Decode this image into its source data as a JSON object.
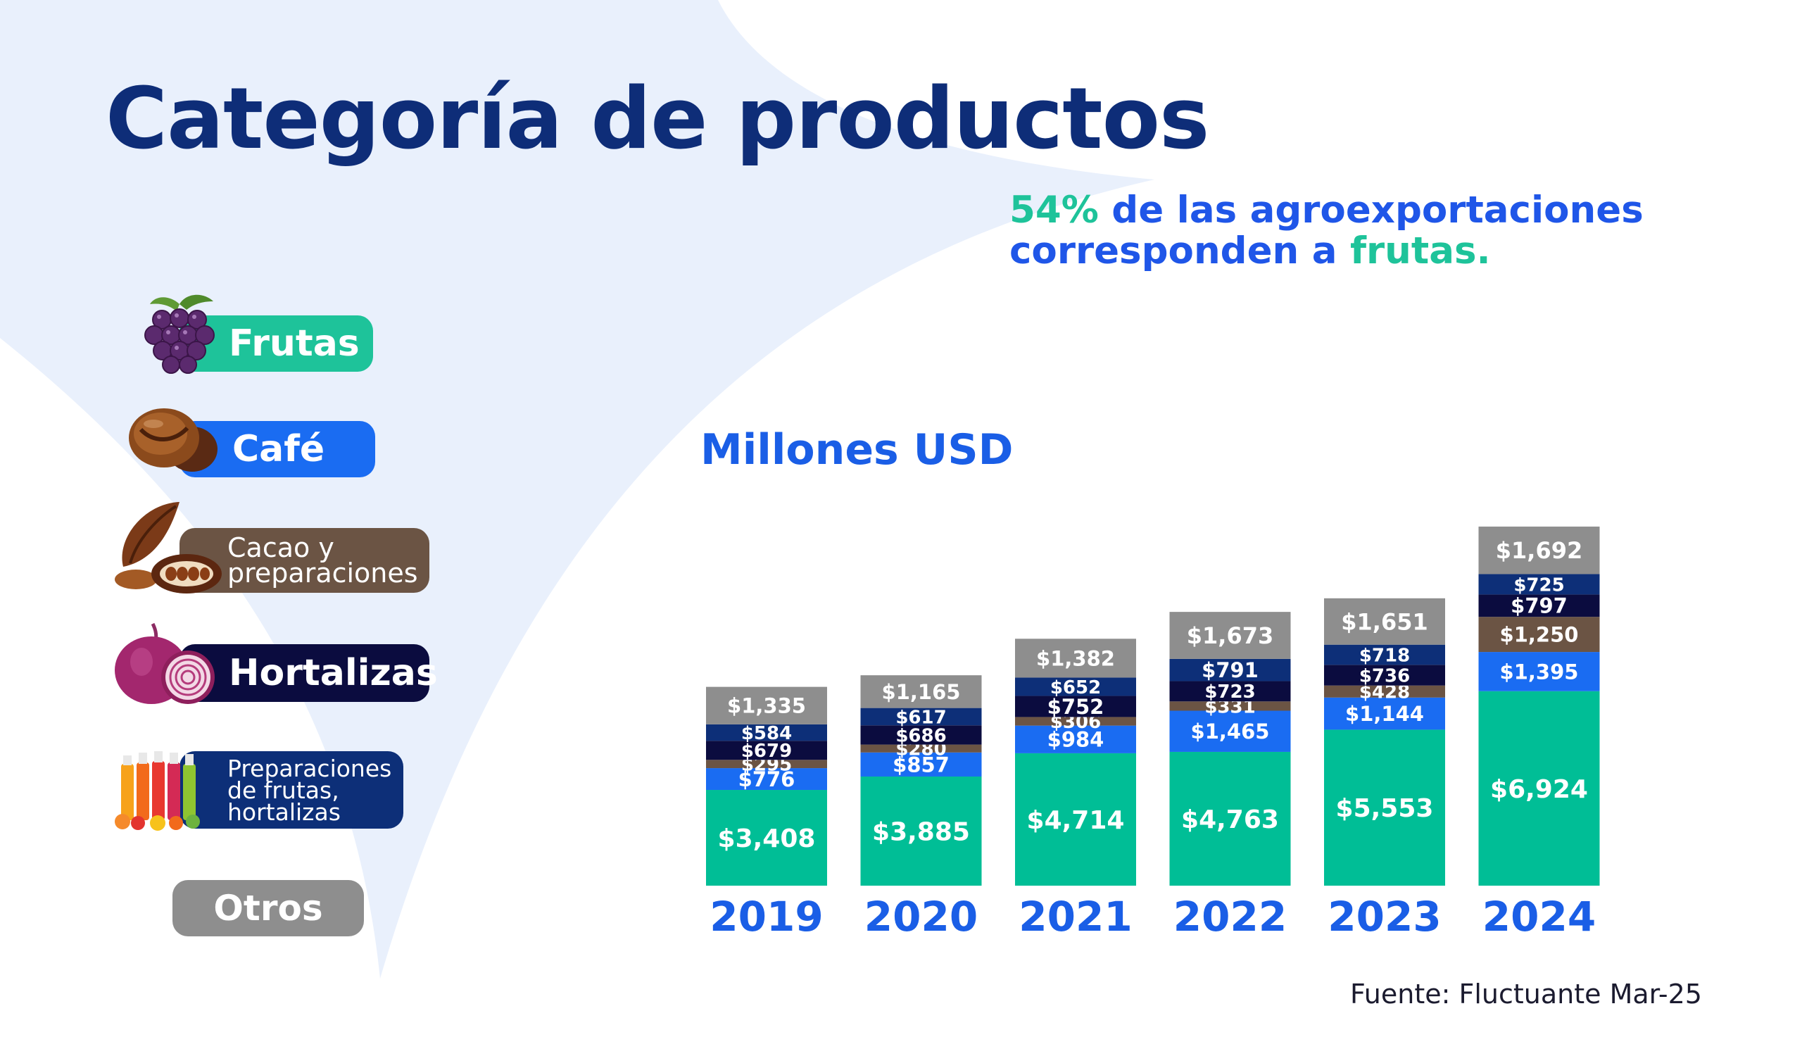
{
  "page": {
    "title": "Categoría de productos",
    "highlight": {
      "pct": "54%",
      "middle": " de las agroexportaciones corresponden a ",
      "tail": "frutas."
    },
    "unit": "Millones USD",
    "source": "Fuente: Fluctuante Mar-25"
  },
  "legend": [
    {
      "label": "Frutas",
      "color": "#1ec39a",
      "icon": "grapes-icon"
    },
    {
      "label": "Café",
      "color": "#1a6cf2",
      "icon": "coffee-bean-icon"
    },
    {
      "label": "Cacao y\npreparaciones",
      "color": "#6b5444",
      "icon": "cacao-pod-icon"
    },
    {
      "label": "Hortalizas",
      "color": "#0b0c3f",
      "icon": "onion-icon"
    },
    {
      "label": "Preparaciones\nde frutas,\nhortalizas",
      "color": "#0d2f78",
      "icon": "juice-bottles-icon"
    },
    {
      "label": "Otros",
      "color": "#8e8e8e",
      "icon": ""
    }
  ],
  "chart_data": {
    "type": "bar",
    "stacked": true,
    "categories": [
      "2019",
      "2020",
      "2021",
      "2022",
      "2023",
      "2024"
    ],
    "series": [
      {
        "name": "Frutas",
        "color": "#00be96",
        "values": [
          3408,
          3885,
          4714,
          4763,
          5553,
          6924
        ],
        "labels": [
          "$3,408",
          "$3,885",
          "$4,714",
          "$4,763",
          "$5,553",
          "$6,924"
        ]
      },
      {
        "name": "Café",
        "color": "#1a6cf2",
        "values": [
          776,
          857,
          984,
          1465,
          1144,
          1395
        ],
        "labels": [
          "$776",
          "$857",
          "$984",
          "$1,465",
          "$1,144",
          "$1,395"
        ]
      },
      {
        "name": "Cacao y preparaciones",
        "color": "#6b5444",
        "values": [
          295,
          280,
          306,
          331,
          428,
          1250
        ],
        "labels": [
          "$295",
          "$280",
          "$306",
          "$331",
          "$428",
          "$1,250"
        ]
      },
      {
        "name": "Hortalizas",
        "color": "#0b0c3f",
        "values": [
          679,
          686,
          752,
          723,
          736,
          797
        ],
        "labels": [
          "$679",
          "$686",
          "$752",
          "$723",
          "$736",
          "$797"
        ]
      },
      {
        "name": "Preparaciones de frutas, hortalizas",
        "color": "#0d2f78",
        "values": [
          584,
          617,
          652,
          791,
          718,
          725
        ],
        "labels": [
          "$584",
          "$617",
          "$652",
          "$791",
          "$718",
          "$725"
        ]
      },
      {
        "name": "Otros",
        "color": "#8e8e8e",
        "values": [
          1335,
          1165,
          1382,
          1673,
          1651,
          1692
        ],
        "labels": [
          "$1,335",
          "$1,165",
          "$1,382",
          "$1,673",
          "$1,651",
          "$1,692"
        ]
      }
    ],
    "ylim": [
      0,
      13000
    ],
    "grid": false,
    "legend_position": "left"
  }
}
